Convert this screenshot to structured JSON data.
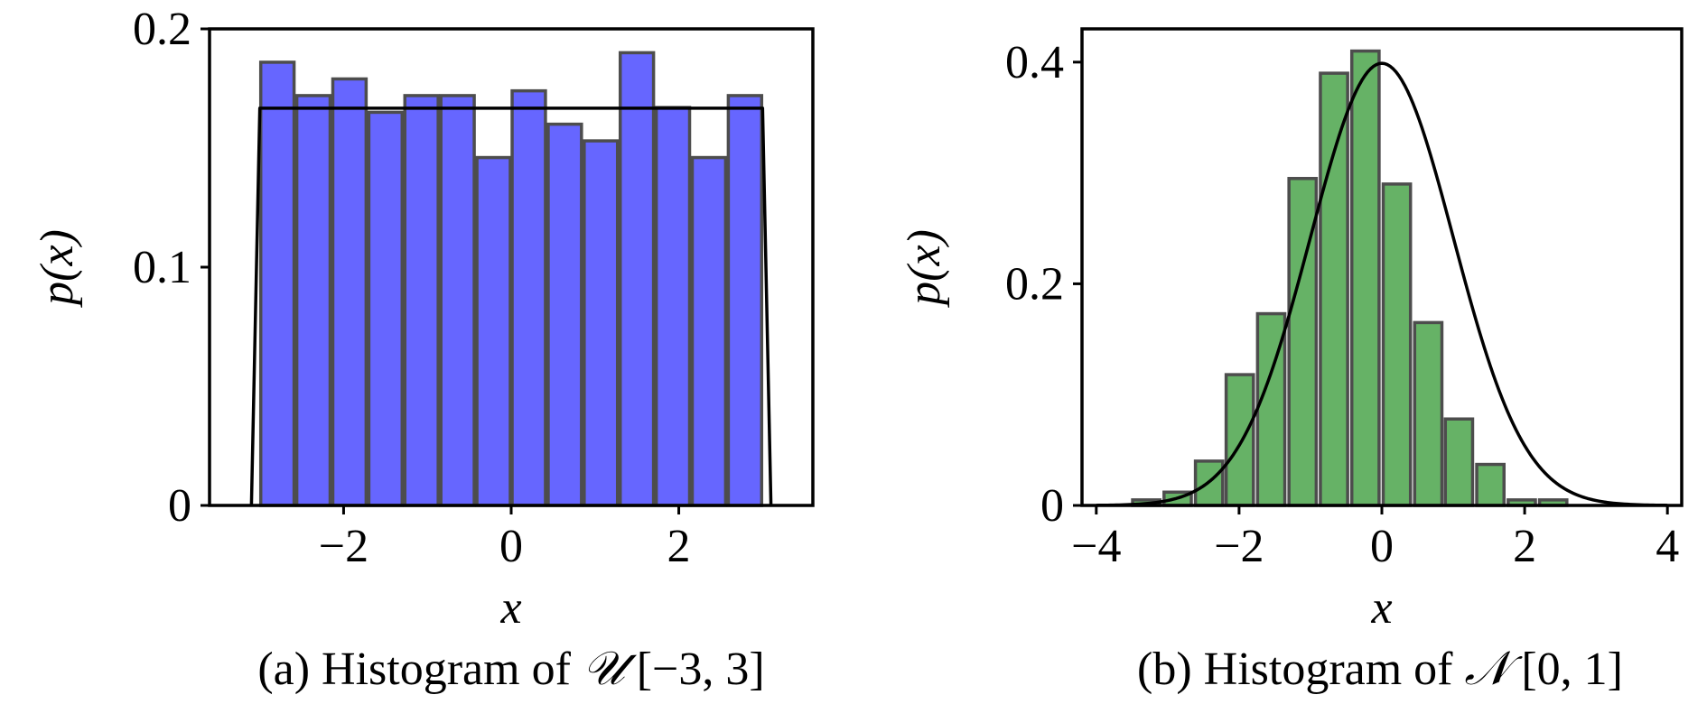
{
  "chart_data": [
    {
      "type": "bar",
      "panel": "a",
      "caption": {
        "prefix": "(a) Histogram of ",
        "symbol": "𝒰",
        "range": " [−3, 3]"
      },
      "xlabel": "x",
      "ylabel": "p(x)",
      "xlim": [
        -3.6,
        3.6
      ],
      "ylim": [
        0,
        0.2
      ],
      "xticks": [
        -2,
        0,
        2
      ],
      "xtick_labels": [
        "−2",
        "0",
        "2"
      ],
      "yticks": [
        0,
        0.1,
        0.2
      ],
      "ytick_labels": [
        "0",
        "0.1",
        "0.2"
      ],
      "bin_width": 0.43,
      "x": [
        -2.79,
        -2.36,
        -1.93,
        -1.5,
        -1.07,
        -0.64,
        -0.21,
        0.21,
        0.64,
        1.07,
        1.5,
        1.93,
        2.36,
        2.79
      ],
      "values": [
        0.186,
        0.172,
        0.179,
        0.165,
        0.172,
        0.172,
        0.146,
        0.174,
        0.16,
        0.153,
        0.19,
        0.167,
        0.146,
        0.172
      ],
      "bar_color": "#6666ff",
      "curve": {
        "label": "",
        "x": [
          -3.1,
          -3.0,
          3.0,
          3.1
        ],
        "y": [
          0,
          0.1667,
          0.1667,
          0
        ]
      },
      "grid": false
    },
    {
      "type": "bar",
      "panel": "b",
      "caption": {
        "prefix": "(b) Histogram of ",
        "symbol": "𝒩",
        "range": " [0, 1]"
      },
      "xlabel": "x",
      "ylabel": "p(x)",
      "xlim": [
        -4.2,
        4.2
      ],
      "ylim": [
        0,
        0.43
      ],
      "xticks": [
        -4,
        -2,
        0,
        2,
        4
      ],
      "xtick_labels": [
        "−4",
        "−2",
        "0",
        "2",
        "4"
      ],
      "yticks": [
        0,
        0.2,
        0.4
      ],
      "ytick_labels": [
        "0",
        "0.2",
        "0.4"
      ],
      "bin_width": 0.42,
      "x": [
        -3.3,
        -2.86,
        -2.42,
        -1.99,
        -1.55,
        -1.11,
        -0.67,
        -0.23,
        0.21,
        0.65,
        1.08,
        1.52,
        1.96,
        2.4,
        2.84,
        3.28
      ],
      "values": [
        0.005,
        0.012,
        0.04,
        0.118,
        0.173,
        0.295,
        0.39,
        0.41,
        0.29,
        0.165,
        0.078,
        0.037,
        0.005,
        0.005,
        0,
        0
      ],
      "bar_color": "#66b266",
      "curve": {
        "label": "",
        "function": "standard-normal-pdf",
        "x_range": [
          -4,
          4
        ]
      },
      "grid": false
    }
  ],
  "colors": {
    "bar_edge": "#4d4d4d",
    "line": "#000000"
  }
}
